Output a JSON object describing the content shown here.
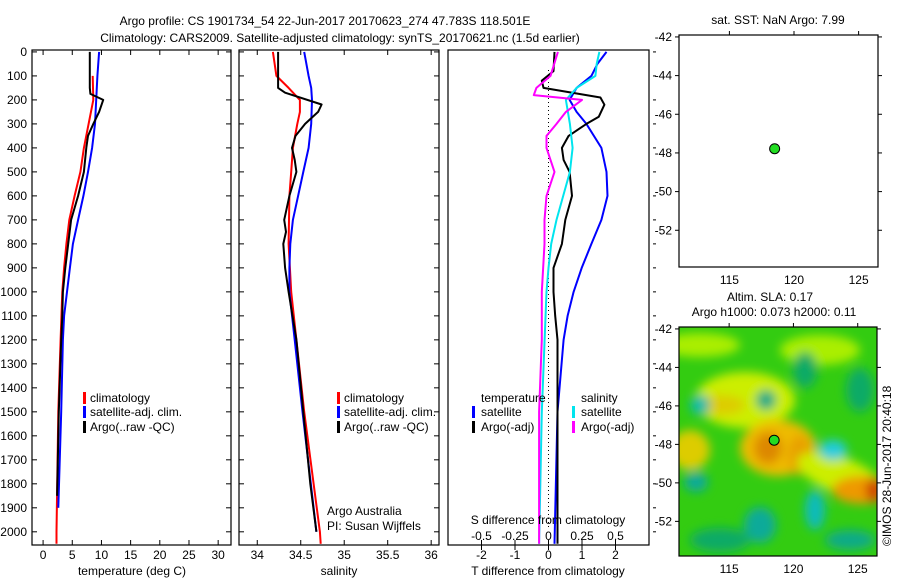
{
  "title_line1": "Argo profile: CS 1901734_54 22-Jun-2017 20170623_274 47.783S 118.501E",
  "title_line2": "Climatology: CARS2009. Satellite-adjusted climatology: synTS_20170621.nc (1.5d earlier)",
  "colors": {
    "climatology": "#ff0000",
    "satellite": "#0000ff",
    "argo": "#000000",
    "sal_satellite": "#00e5ee",
    "sal_argo": "#ff00ff",
    "marker": "#22dd22"
  },
  "chart_data": [
    {
      "type": "line",
      "title": "",
      "xlabel": "temperature (deg C)",
      "ylabel": "",
      "xlim": [
        -1.9,
        32.2
      ],
      "ylim": [
        2055,
        -8
      ],
      "xticks": [
        0,
        5,
        10,
        15,
        20,
        25,
        30
      ],
      "yticks": [
        0,
        100,
        200,
        300,
        400,
        500,
        600,
        700,
        800,
        900,
        1000,
        1100,
        1200,
        1300,
        1400,
        1500,
        1600,
        1700,
        1800,
        1900,
        2000
      ],
      "legend": [
        "climatology",
        "satellite-adj. clim.",
        "Argo(..raw -QC)"
      ],
      "series": [
        {
          "name": "climatology",
          "color": "#ff0000",
          "depth": [
            100,
            200,
            300,
            400,
            500,
            600,
            700,
            800,
            900,
            1000,
            1200,
            1500,
            2000,
            2050
          ],
          "values": [
            8.5,
            8.6,
            7.8,
            7.0,
            6.4,
            5.4,
            4.5,
            4.0,
            3.6,
            3.3,
            3.0,
            2.6,
            2.3,
            2.3
          ]
        },
        {
          "name": "satellite-adj. clim.",
          "color": "#0000ff",
          "depth": [
            0,
            100,
            200,
            300,
            400,
            500,
            600,
            700,
            800,
            900,
            1000,
            1100,
            1200,
            1500,
            1900
          ],
          "values": [
            9.6,
            9.3,
            9.1,
            8.9,
            8.4,
            7.7,
            6.9,
            6.0,
            5.1,
            4.6,
            4.1,
            3.6,
            3.4,
            3.1,
            2.6
          ]
        },
        {
          "name": "Argo(..raw -QC)",
          "color": "#000000",
          "depth": [
            0,
            150,
            175,
            200,
            250,
            300,
            350,
            400,
            500,
            600,
            700,
            800,
            900,
            1000,
            1100,
            1200,
            1500,
            1850
          ],
          "values": [
            8.0,
            8.0,
            8.1,
            10.3,
            9.6,
            8.6,
            7.7,
            7.4,
            7.0,
            6.0,
            4.8,
            4.3,
            3.8,
            3.4,
            3.3,
            3.1,
            2.7,
            2.4
          ]
        }
      ]
    },
    {
      "type": "line",
      "xlabel": "salinity",
      "xlim": [
        33.79,
        36.09
      ],
      "ylim": [
        2055,
        -8
      ],
      "xticks": [
        34,
        34.5,
        35,
        35.5,
        36
      ],
      "xticklabels": [
        "34",
        "34.5",
        "35",
        "35.5",
        "36"
      ],
      "legend": [
        "climatology",
        "satellite-adj. clim.",
        "Argo(..raw -QC)"
      ],
      "annotation": [
        "Argo Australia",
        "PI: Susan Wijffels"
      ],
      "series": [
        {
          "name": "climatology",
          "color": "#ff0000",
          "depth": [
            0,
            100,
            150,
            200,
            250,
            300,
            400,
            500,
            600,
            800,
            1000,
            1200,
            1500,
            2000,
            2050
          ],
          "values": [
            34.18,
            34.22,
            34.36,
            34.49,
            34.49,
            34.46,
            34.41,
            34.39,
            34.37,
            34.36,
            34.39,
            34.45,
            34.54,
            34.72,
            34.73
          ]
        },
        {
          "name": "satellite-adj. clim.",
          "color": "#0000ff",
          "depth": [
            0,
            100,
            150,
            200,
            300,
            400,
            500,
            600,
            700,
            800,
            900,
            1000,
            1200,
            1500,
            2000
          ],
          "values": [
            34.54,
            34.59,
            34.62,
            34.63,
            34.62,
            34.59,
            34.53,
            34.47,
            34.41,
            34.38,
            34.37,
            34.37,
            34.43,
            34.52,
            34.68
          ]
        },
        {
          "name": "Argo(..raw -QC)",
          "color": "#000000",
          "depth": [
            0,
            150,
            170,
            219,
            250,
            300,
            350,
            400,
            450,
            500,
            550,
            600,
            700,
            750,
            800,
            900,
            1000,
            1200,
            1500,
            1800,
            2000
          ],
          "values": [
            34.24,
            34.24,
            34.32,
            34.74,
            34.7,
            34.55,
            34.44,
            34.4,
            34.43,
            34.45,
            34.41,
            34.37,
            34.31,
            34.33,
            34.3,
            34.32,
            34.36,
            34.45,
            34.53,
            34.61,
            34.68
          ]
        }
      ]
    },
    {
      "type": "line",
      "xlabel": "T difference from climatology",
      "x2label": "S difference from climatology",
      "xlim": [
        -3,
        3
      ],
      "ylim": [
        2055,
        -8
      ],
      "xticks": [
        -2,
        -1,
        0,
        1,
        2
      ],
      "x2ticks": [
        -0.5,
        -0.25,
        0,
        0.25,
        0.5
      ],
      "x2ticklabels": [
        "-0.5",
        "-0.25",
        "0",
        "0.25",
        "0.5"
      ],
      "legend_headers": [
        "temperature",
        "salinity"
      ],
      "legend": [
        "satellite",
        "Argo(-adj)",
        "satellite",
        "Argo(-adj)"
      ],
      "series": [
        {
          "name": "T satellite",
          "variable": "T",
          "color": "#0000ff",
          "depth": [
            0,
            50,
            100,
            150,
            200,
            250,
            300,
            400,
            500,
            600,
            700,
            800,
            900,
            1000,
            1100,
            1200,
            1500,
            2050
          ],
          "values": [
            1.73,
            1.46,
            1.28,
            0.84,
            0.63,
            0.84,
            1.13,
            1.58,
            1.73,
            1.76,
            1.58,
            1.28,
            0.99,
            0.75,
            0.57,
            0.45,
            0.27,
            0.18
          ]
        },
        {
          "name": "T Argo(-adj)",
          "variable": "T",
          "color": "#000000",
          "depth": [
            0,
            80,
            120,
            150,
            190,
            220,
            270,
            300,
            350,
            400,
            450,
            500,
            600,
            700,
            800,
            900,
            1000,
            1100,
            1200,
            1500,
            2050
          ],
          "values": [
            0.18,
            0.15,
            -0.2,
            -0.15,
            1.55,
            1.67,
            1.5,
            1.13,
            0.6,
            0.4,
            0.45,
            0.63,
            0.7,
            0.5,
            0.4,
            0.15,
            0.15,
            0.2,
            0.27,
            0.27,
            0.27
          ]
        },
        {
          "name": "S satellite",
          "variable": "S",
          "color": "#00e5ee",
          "depth": [
            0,
            50,
            100,
            150,
            200,
            300,
            400,
            500,
            600,
            700,
            800,
            900,
            1000,
            1500,
            2050
          ],
          "values": [
            0.38,
            0.36,
            0.35,
            0.21,
            0.13,
            0.16,
            0.18,
            0.16,
            0.11,
            0.06,
            0.02,
            0,
            -0.015,
            -0.05,
            -0.07
          ]
        },
        {
          "name": "S Argo(-adj)",
          "variable": "S",
          "color": "#ff00ff",
          "depth": [
            0,
            100,
            150,
            180,
            200,
            250,
            300,
            350,
            400,
            500,
            600,
            700,
            800,
            1000,
            1200,
            1500,
            2050
          ],
          "values": [
            0.07,
            0.015,
            -0.09,
            -0.11,
            0.25,
            0.13,
            0.06,
            -0.015,
            -0.015,
            0.045,
            -0.015,
            -0.03,
            -0.03,
            -0.05,
            -0.05,
            -0.07,
            -0.07
          ]
        }
      ]
    },
    {
      "type": "scatter",
      "title": "sat. SST: NaN Argo: 7.99",
      "xlim": [
        111.1,
        126.5
      ],
      "ylim": [
        -53.9,
        -41.9
      ],
      "xticks": [
        115,
        120,
        125
      ],
      "yticks": [
        -42,
        -44,
        -46,
        -48,
        -50,
        -52
      ],
      "points": [
        {
          "lon": 118.501,
          "lat": -47.783
        }
      ]
    },
    {
      "type": "heatmap",
      "title_line1": "Altim. SLA: 0.17",
      "title_line2": "Argo h1000: 0.073 h2000: 0.11",
      "xlim": [
        111.1,
        126.5
      ],
      "ylim": [
        -53.8,
        -41.9
      ],
      "xticks": [
        115,
        120,
        125
      ],
      "yticks": [
        -42,
        -44,
        -46,
        -48,
        -50,
        -52
      ],
      "points": [
        {
          "lon": 118.501,
          "lat": -47.783
        }
      ],
      "credit": "©IMOS 28-Jun-2017 20:40:18"
    }
  ]
}
